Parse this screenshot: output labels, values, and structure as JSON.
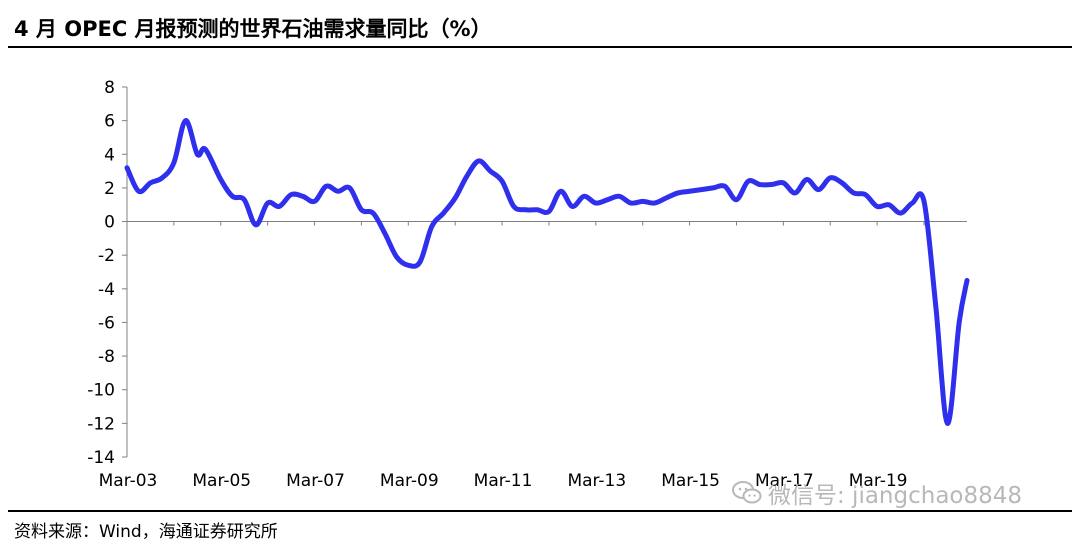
{
  "header": {
    "title": "4 月 OPEC 月报预测的世界石油需求量同比（%）"
  },
  "footer": {
    "source": "资料来源：Wind，海通证券研究所"
  },
  "watermark": {
    "icon": "wechat-icon",
    "text": "微信号: jiangchao8848"
  },
  "colors": {
    "series": "#2f2fee",
    "axis": "#808080",
    "text": "#000000",
    "watermark": "#b8b8b8"
  },
  "chart_data": {
    "type": "line",
    "title": "",
    "xlabel": "",
    "ylabel": "",
    "ylim": [
      -14,
      8
    ],
    "yticks": [
      8,
      6,
      4,
      2,
      0,
      -2,
      -4,
      -6,
      -8,
      -10,
      -12,
      -14
    ],
    "xlim": [
      2003.0,
      2020.917
    ],
    "xticks": [
      {
        "x": 2003.0,
        "label": "Mar-03"
      },
      {
        "x": 2005.0,
        "label": "Mar-05"
      },
      {
        "x": 2007.0,
        "label": "Mar-07"
      },
      {
        "x": 2009.0,
        "label": "Mar-09"
      },
      {
        "x": 2011.0,
        "label": "Mar-11"
      },
      {
        "x": 2013.0,
        "label": "Mar-13"
      },
      {
        "x": 2015.0,
        "label": "Mar-15"
      },
      {
        "x": 2017.0,
        "label": "Mar-17"
      },
      {
        "x": 2019.0,
        "label": "Mar-19"
      }
    ],
    "grid": false,
    "series": [
      {
        "name": "",
        "points": [
          [
            2003.0,
            3.2
          ],
          [
            2003.25,
            1.8
          ],
          [
            2003.5,
            2.3
          ],
          [
            2003.75,
            2.6
          ],
          [
            2004.0,
            3.5
          ],
          [
            2004.25,
            6.0
          ],
          [
            2004.5,
            4.0
          ],
          [
            2004.67,
            4.3
          ],
          [
            2005.0,
            2.5
          ],
          [
            2005.25,
            1.5
          ],
          [
            2005.5,
            1.3
          ],
          [
            2005.75,
            -0.2
          ],
          [
            2006.0,
            1.1
          ],
          [
            2006.25,
            0.9
          ],
          [
            2006.5,
            1.6
          ],
          [
            2006.75,
            1.5
          ],
          [
            2007.0,
            1.2
          ],
          [
            2007.25,
            2.1
          ],
          [
            2007.5,
            1.8
          ],
          [
            2007.75,
            2.0
          ],
          [
            2008.0,
            0.7
          ],
          [
            2008.25,
            0.5
          ],
          [
            2008.5,
            -0.7
          ],
          [
            2008.75,
            -2.1
          ],
          [
            2009.0,
            -2.6
          ],
          [
            2009.25,
            -2.4
          ],
          [
            2009.5,
            -0.3
          ],
          [
            2009.75,
            0.5
          ],
          [
            2010.0,
            1.4
          ],
          [
            2010.25,
            2.7
          ],
          [
            2010.5,
            3.6
          ],
          [
            2010.75,
            3.0
          ],
          [
            2011.0,
            2.4
          ],
          [
            2011.25,
            0.9
          ],
          [
            2011.5,
            0.7
          ],
          [
            2011.75,
            0.7
          ],
          [
            2012.0,
            0.6
          ],
          [
            2012.25,
            1.8
          ],
          [
            2012.5,
            0.9
          ],
          [
            2012.75,
            1.5
          ],
          [
            2013.0,
            1.1
          ],
          [
            2013.25,
            1.3
          ],
          [
            2013.5,
            1.5
          ],
          [
            2013.75,
            1.1
          ],
          [
            2014.0,
            1.2
          ],
          [
            2014.25,
            1.1
          ],
          [
            2014.5,
            1.4
          ],
          [
            2014.75,
            1.7
          ],
          [
            2015.0,
            1.8
          ],
          [
            2015.25,
            1.9
          ],
          [
            2015.5,
            2.0
          ],
          [
            2015.75,
            2.1
          ],
          [
            2016.0,
            1.3
          ],
          [
            2016.25,
            2.4
          ],
          [
            2016.5,
            2.2
          ],
          [
            2016.75,
            2.2
          ],
          [
            2017.0,
            2.3
          ],
          [
            2017.25,
            1.7
          ],
          [
            2017.5,
            2.5
          ],
          [
            2017.75,
            1.9
          ],
          [
            2018.0,
            2.6
          ],
          [
            2018.25,
            2.3
          ],
          [
            2018.5,
            1.7
          ],
          [
            2018.75,
            1.6
          ],
          [
            2019.0,
            0.9
          ],
          [
            2019.25,
            1.0
          ],
          [
            2019.5,
            0.5
          ],
          [
            2019.75,
            1.1
          ],
          [
            2020.0,
            1.2
          ],
          [
            2020.25,
            -5.0
          ],
          [
            2020.5,
            -12.0
          ],
          [
            2020.75,
            -6.0
          ],
          [
            2020.917,
            -3.5
          ]
        ]
      }
    ]
  }
}
